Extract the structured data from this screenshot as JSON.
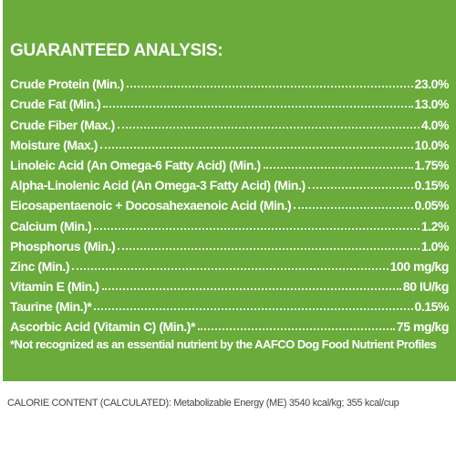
{
  "header": {
    "title": "GUARANTEED ANALYSIS:"
  },
  "table": {
    "rows": [
      [
        "Crude Protein (Min.)",
        "23.0%"
      ],
      [
        "Crude Fat (Min.)",
        "13.0%"
      ],
      [
        "Crude Fiber (Max.)",
        "4.0%"
      ],
      [
        "Moisture (Max.)",
        "10.0%"
      ],
      [
        "Linoleic Acid (An Omega-6 Fatty Acid) (Min.)",
        "1.75%"
      ],
      [
        "Alpha-Linolenic Acid (An Omega-3 Fatty Acid) (Min.)",
        "0.15%"
      ],
      [
        "Eicosapentaenoic + Docosahexaenoic Acid (Min.)",
        "0.05%"
      ],
      [
        "Calcium (Min.)",
        "1.2%"
      ],
      [
        "Phosphorus (Min.)",
        "1.0%"
      ],
      [
        "Zinc (Min.)",
        "100 mg/kg"
      ],
      [
        "Vitamin E (Min.)",
        "80 IU/kg"
      ],
      [
        "Taurine (Min.)*",
        "0.15%"
      ],
      [
        "Ascorbic Acid (Vitamin C) (Min.)*",
        "75 mg/kg"
      ]
    ]
  },
  "footnote": "*Not recognized as an essential nutrient by the AAFCO Dog Food Nutrient Profiles",
  "calorie": "CALORIE CONTENT (CALCULATED): Metabolizable Energy (ME) 3540 kcal/kg; 355 kcal/cup"
}
